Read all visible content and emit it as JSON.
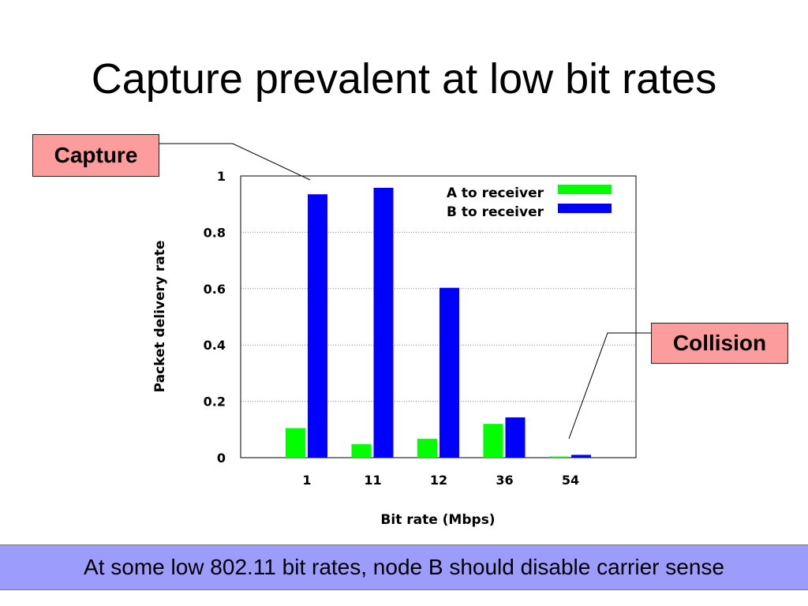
{
  "slide": {
    "title": "Capture prevalent at low bit rates",
    "footer": "At some low 802.11 bit rates, node B should disable carrier sense"
  },
  "callouts": {
    "capture": "Capture",
    "collision": "Collision",
    "color": "#fc9c9c"
  },
  "chart_data": {
    "type": "bar",
    "title": "",
    "xlabel": "Bit rate (Mbps)",
    "ylabel": "Packet delivery rate",
    "categories": [
      "1",
      "11",
      "12",
      "36",
      "54"
    ],
    "series": [
      {
        "name": "A to receiver",
        "color": "#00ff00",
        "values": [
          0.105,
          0.048,
          0.067,
          0.12,
          0.004
        ]
      },
      {
        "name": "B to receiver",
        "color": "#0000ff",
        "values": [
          0.935,
          0.958,
          0.603,
          0.143,
          0.01
        ]
      }
    ],
    "ylim": [
      0,
      1
    ],
    "yticks": [
      "0",
      "0.2",
      "0.4",
      "0.6",
      "0.8",
      "1"
    ],
    "grid": true,
    "legend": "top-right"
  }
}
